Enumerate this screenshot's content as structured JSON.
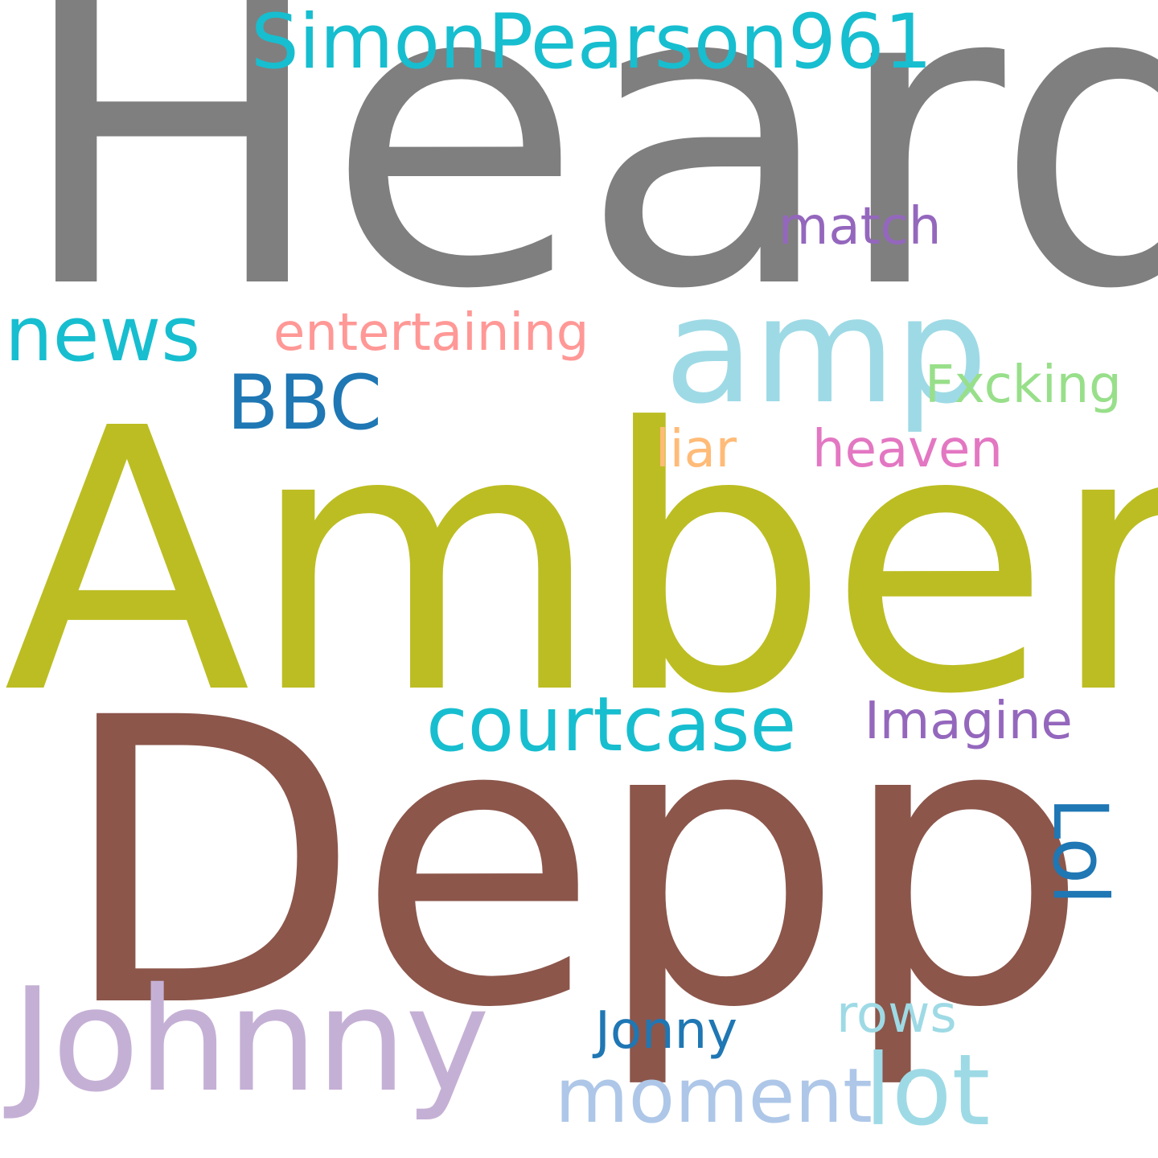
{
  "words": [
    {
      "text": "Heard",
      "color": "#7f7f7f"
    },
    {
      "text": "Amber",
      "color": "#bcbd22"
    },
    {
      "text": "Depp",
      "color": "#8c564b"
    },
    {
      "text": "Johnny",
      "color": "#c5b0d5"
    },
    {
      "text": "amp",
      "color": "#9edae5"
    },
    {
      "text": "SimonPearson961",
      "color": "#17becf"
    },
    {
      "text": "news",
      "color": "#17becf"
    },
    {
      "text": "BBC",
      "color": "#1f77b4"
    },
    {
      "text": "entertaining",
      "color": "#ff9896"
    },
    {
      "text": "match",
      "color": "#9467bd"
    },
    {
      "text": "Fxcking",
      "color": "#98df8a"
    },
    {
      "text": "liar",
      "color": "#ffbb78"
    },
    {
      "text": "heaven",
      "color": "#e377c2"
    },
    {
      "text": "courtcase",
      "color": "#17becf"
    },
    {
      "text": "Imagine",
      "color": "#9467bd"
    },
    {
      "text": "Lol",
      "color": "#1f77b4"
    },
    {
      "text": "Jonny",
      "color": "#1f77b4"
    },
    {
      "text": "rows",
      "color": "#9edae5"
    },
    {
      "text": "moment",
      "color": "#aec7e8"
    },
    {
      "text": "lot",
      "color": "#9edae5"
    }
  ]
}
